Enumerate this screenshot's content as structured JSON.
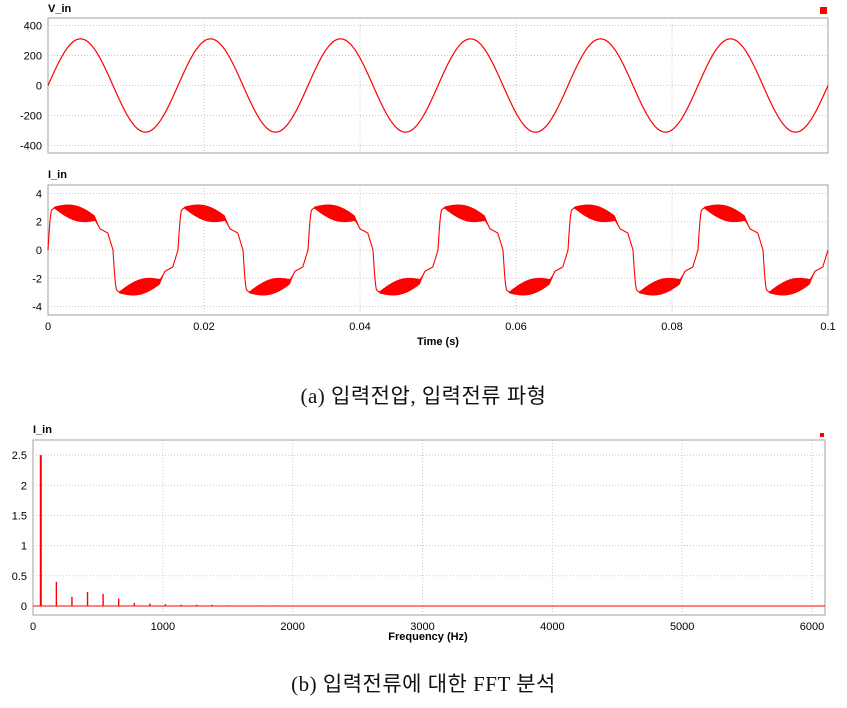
{
  "captions": {
    "a": "(a) 입력전압, 입력전류 파형",
    "b": "(b) 입력전류에 대한 FFT 분석"
  },
  "colors": {
    "trace": "#ff0000",
    "frame": "#a0a0a0",
    "grid": "#c8c8c8",
    "plot_bg": "#ffffff"
  },
  "chart_data": [
    {
      "type": "line",
      "series": [
        {
          "name": "V_in",
          "amplitude": 311,
          "frequency_hz": 60
        }
      ],
      "x": {
        "range": [
          0,
          0.1
        ],
        "ticks": [
          0,
          0.02,
          0.04,
          0.06,
          0.08,
          0.1
        ],
        "tick_labels": []
      },
      "ylim": [
        -450,
        450
      ],
      "yticks": [
        -400,
        -200,
        0,
        200,
        400
      ],
      "ytick_labels": [
        "-400",
        "-200",
        "0",
        "200",
        "400"
      ],
      "grid": true,
      "legend": "top-right marker"
    },
    {
      "type": "line",
      "series": [
        {
          "name": "I_in",
          "peak": 3.0,
          "ripple": 0.55,
          "frequency_hz": 60
        }
      ],
      "x": {
        "range": [
          0,
          0.1
        ],
        "ticks": [
          0,
          0.02,
          0.04,
          0.06,
          0.08,
          0.1
        ],
        "tick_labels": [
          "0",
          "0.02",
          "0.04",
          "0.06",
          "0.08",
          "0.1"
        ]
      },
      "xlabel": "Time (s)",
      "ylim": [
        -4.6,
        4.6
      ],
      "yticks": [
        -4,
        -2,
        0,
        2,
        4
      ],
      "ytick_labels": [
        "-4",
        "-2",
        "0",
        "2",
        "4"
      ],
      "grid": true
    },
    {
      "type": "bar",
      "series": [
        {
          "name": "I_in",
          "x": [
            60,
            180,
            300,
            420,
            540,
            660,
            780,
            900,
            1020,
            1140,
            1260,
            1380,
            1500,
            1740,
            1860
          ],
          "values": [
            2.5,
            0.4,
            0.15,
            0.23,
            0.2,
            0.12,
            0.05,
            0.04,
            0.03,
            0.02,
            0.02,
            0.02,
            0.01,
            0.01,
            0.01
          ]
        }
      ],
      "x_axis": {
        "range": [
          0,
          6100
        ],
        "ticks": [
          0,
          1000,
          2000,
          3000,
          4000,
          5000,
          6000
        ],
        "tick_labels": [
          "0",
          "1000",
          "2000",
          "3000",
          "4000",
          "5000",
          "6000"
        ]
      },
      "xlabel": "Frequency (Hz)",
      "ylim": [
        -0.15,
        2.75
      ],
      "yticks": [
        0,
        0.5,
        1,
        1.5,
        2,
        2.5
      ],
      "ytick_labels": [
        "0",
        "0.5",
        "1",
        "1.5",
        "2",
        "2.5"
      ],
      "grid": true,
      "legend": "top-right marker"
    }
  ]
}
